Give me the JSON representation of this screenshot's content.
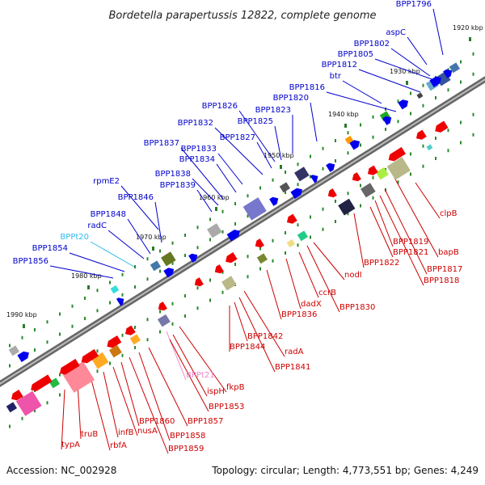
{
  "title": "Bordetella parapertussis 12822, complete genome",
  "footer": {
    "accession": "Accession: NC_002928",
    "summary": "Topology: circular; Length: 4,773,551 bp; Genes: 4,249"
  },
  "colors": {
    "forward_label": "#0000cc",
    "reverse_label": "#cc0000",
    "trna_forward": "#33bbee",
    "trna_reverse": "#ee88cc",
    "forward_gene": "#0000ee",
    "reverse_gene": "#ee0000",
    "backbone": "#888888"
  },
  "ticks": [
    "1920 kbp",
    "1930 kbp",
    "1940 kbp",
    "1950 kbp",
    "1960 kbp",
    "1970 kbp",
    "1980 kbp",
    "1990 kbp"
  ],
  "forward_labels": [
    "BPP1796",
    "aspC",
    "BPP1802",
    "BPP1805",
    "BPP1812",
    "btr",
    "BPP1816",
    "BPP1820",
    "BPP1823",
    "BPP1825",
    "BPP1826",
    "BPP1827",
    "BPP1832",
    "BPP1833",
    "BPP1834",
    "BPP1837",
    "BPP1838",
    "BPP1839",
    "rpmE2",
    "BPP1846",
    "BPP1848",
    "radC",
    "BPPt20",
    "BPP1854",
    "BPP1856"
  ],
  "reverse_labels": [
    "clpB",
    "bapB",
    "BPP1817",
    "BPP1818",
    "BPP1819",
    "BPP1821",
    "BPP1822",
    "nodI",
    "BPP1830",
    "ccrB",
    "dadX",
    "BPP1836",
    "radA",
    "BPP1841",
    "BPP1842",
    "BPP1844",
    "fkpB",
    "BPPt21",
    "ispH",
    "BPP1853",
    "BPP1857",
    "BPP1858",
    "BPP1859",
    "BPP1860",
    "nusA",
    "infB",
    "rbfA",
    "truB",
    "typA"
  ]
}
